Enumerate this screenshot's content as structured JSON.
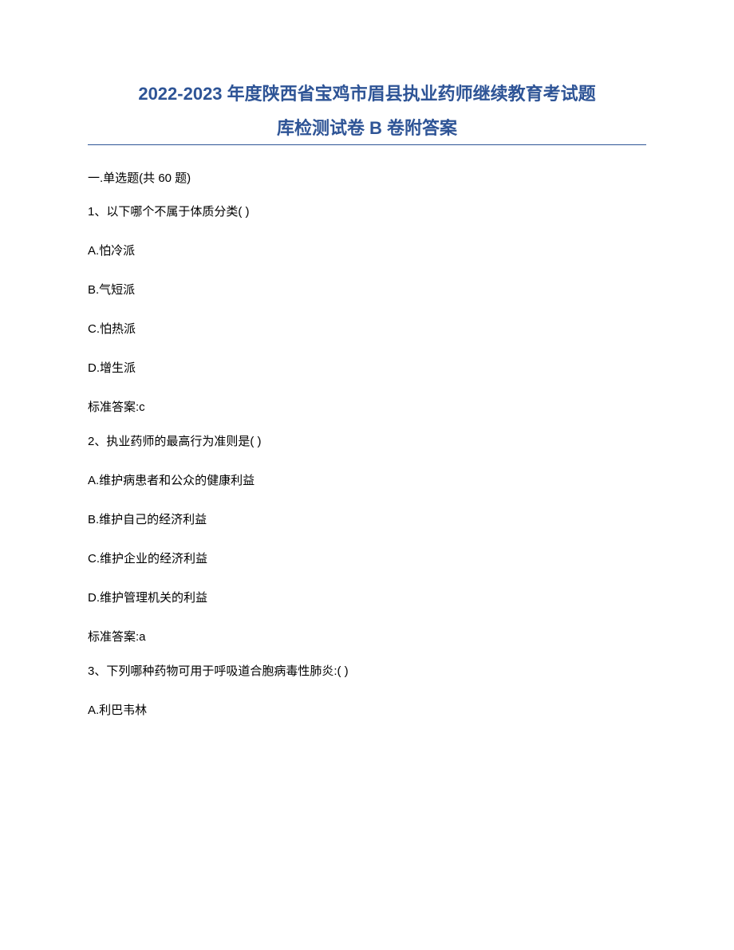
{
  "title_line1": "2022-2023 年度陕西省宝鸡市眉县执业药师继续教育考试题",
  "title_line2": "库检测试卷 B 卷附答案",
  "section_header": "一.单选题(共 60 题)",
  "questions": [
    {
      "prompt": "1、以下哪个不属于体质分类( )",
      "options": [
        "A.怕冷派",
        "B.气短派",
        "C.怕热派",
        "D.增生派"
      ],
      "answer": "标准答案:c"
    },
    {
      "prompt": "2、执业药师的最高行为准则是( )",
      "options": [
        "A.维护病患者和公众的健康利益",
        "B.维护自己的经济利益",
        "C.维护企业的经济利益",
        "D.维护管理机关的利益"
      ],
      "answer": "标准答案:a"
    },
    {
      "prompt": "3、下列哪种药物可用于呼吸道合胞病毒性肺炎:( )",
      "options": [
        "A.利巴韦林"
      ],
      "answer": null
    }
  ],
  "colors": {
    "title_color": "#2e5496",
    "text_color": "#000000",
    "divider_color": "#2e5496",
    "background": "#ffffff"
  },
  "typography": {
    "title_fontsize": 22,
    "body_fontsize": 15,
    "title_weight": "bold"
  }
}
